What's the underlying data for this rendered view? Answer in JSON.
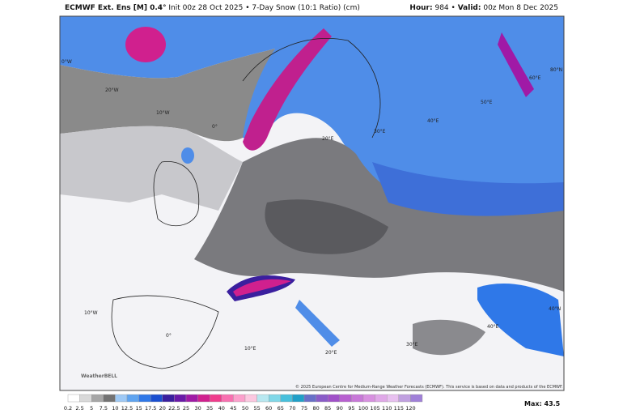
{
  "header": {
    "model": "ECMWF Ext. Ens [M] 0.4°",
    "info": "Init 00z 28 Oct 2025 • 7-Day Snow (10:1 Ratio) (cm)",
    "hour_label": "Hour:",
    "hour": "984 •",
    "valid_label": "Valid:",
    "valid": "00z Mon 8 Dec 2025"
  },
  "map": {
    "labels": [
      "0°W",
      "20°W",
      "10°W",
      "0°",
      "20°E",
      "30°E",
      "40°E",
      "50°E",
      "60°E",
      "80°N",
      "10°W",
      "0°",
      "10°E",
      "20°E",
      "30°E",
      "40°E",
      "40°N"
    ],
    "credit": "© 2025 European Centre for Medium-Range Weather Forecasts (ECMWF). This service is based on data and products of the ECMWF.",
    "logo": "WeatherBELL"
  },
  "legend": {
    "labels": [
      "0.2",
      "2.5",
      "5",
      "7.5",
      "10",
      "12.5",
      "15",
      "17.5",
      "20",
      "22.5",
      "25",
      "30",
      "35",
      "40",
      "45",
      "50",
      "55",
      "60",
      "65",
      "70",
      "75",
      "80",
      "85",
      "90",
      "95",
      "100",
      "105",
      "110",
      "115",
      "120"
    ],
    "colors": [
      "#ffffff",
      "#d9d9d9",
      "#a6a6a6",
      "#737373",
      "#9ec9f5",
      "#5fa4f0",
      "#2f78e8",
      "#1a4fd0",
      "#3a1f9e",
      "#6a1aa8",
      "#a01aa6",
      "#d0208e",
      "#f03c8c",
      "#f870b0",
      "#fca0cc",
      "#fcc8e0",
      "#b8e8f0",
      "#80d8e8",
      "#48c0dc",
      "#20a0c8",
      "#6870c8",
      "#8a5cc8",
      "#a050c8",
      "#b860d0",
      "#c878d8",
      "#d890e0",
      "#e0a8e8",
      "#e8c0f0",
      "#c0a0e0",
      "#a080d8"
    ],
    "max": "Max: 43.5"
  }
}
